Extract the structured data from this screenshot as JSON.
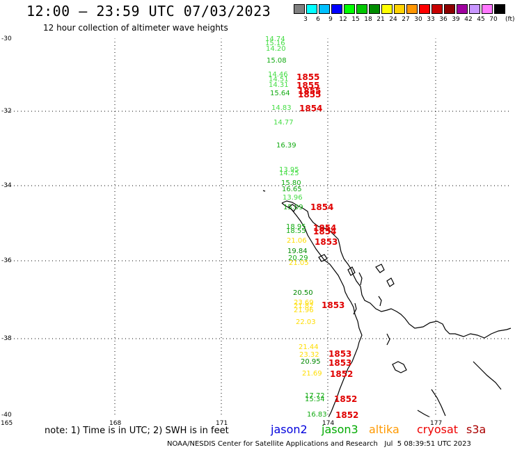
{
  "header": {
    "title": "12:00 – 23:59 UTC 07/03/2023",
    "subtitle": "12 hour collection of altimeter wave heights"
  },
  "legend": {
    "unit": "(ft)",
    "items": [
      {
        "label": "3",
        "color": "#808080"
      },
      {
        "label": "6",
        "color": "#00ffff"
      },
      {
        "label": "9",
        "color": "#00c0ff"
      },
      {
        "label": "12",
        "color": "#0000ff"
      },
      {
        "label": "15",
        "color": "#00ff00"
      },
      {
        "label": "18",
        "color": "#00c800"
      },
      {
        "label": "21",
        "color": "#008c00"
      },
      {
        "label": "24",
        "color": "#ffff00"
      },
      {
        "label": "27",
        "color": "#ffd200"
      },
      {
        "label": "30",
        "color": "#ff9600"
      },
      {
        "label": "33",
        "color": "#ff0000"
      },
      {
        "label": "36",
        "color": "#c80000"
      },
      {
        "label": "39",
        "color": "#8c0000"
      },
      {
        "label": "42",
        "color": "#a000a0"
      },
      {
        "label": "45",
        "color": "#c896ff"
      },
      {
        "label": "70",
        "color": "#ff78ff"
      },
      {
        "label": "",
        "color": "#000000"
      }
    ]
  },
  "axes": {
    "lat_labels": [
      "-30",
      "-32",
      "-34",
      "-36",
      "-38",
      "-40"
    ],
    "lon_labels": [
      "165",
      "168",
      "171",
      "174",
      "177"
    ]
  },
  "measurements": [
    {
      "text": "14.74",
      "color": "#44dd44"
    },
    {
      "text": "15.16",
      "color": "#44dd44"
    },
    {
      "text": "14.20",
      "color": "#44dd44"
    },
    {
      "text": "15.08",
      "color": "#11aa11"
    },
    {
      "text": "14.46",
      "color": "#44dd44"
    },
    {
      "text": "14.51",
      "color": "#44dd44"
    },
    {
      "text": "14.31",
      "color": "#44dd44"
    },
    {
      "text": "15.64",
      "color": "#11aa11"
    },
    {
      "text": "14.83",
      "color": "#44dd44"
    },
    {
      "text": "14.77",
      "color": "#44dd44"
    },
    {
      "text": "16.39",
      "color": "#11aa11"
    },
    {
      "text": "13.95",
      "color": "#44dd44"
    },
    {
      "text": "14.25",
      "color": "#44dd44"
    },
    {
      "text": "15.80",
      "color": "#11aa11"
    },
    {
      "text": "16.65",
      "color": "#11aa11"
    },
    {
      "text": "13.96",
      "color": "#44dd44"
    },
    {
      "text": "15.09",
      "color": "#11aa11"
    },
    {
      "text": "18.95",
      "color": "#11aa11"
    },
    {
      "text": "18.55",
      "color": "#11aa11"
    },
    {
      "text": "21.06",
      "color": "#ffdd00"
    },
    {
      "text": "19.84",
      "color": "#008800"
    },
    {
      "text": "20.29",
      "color": "#11aa11"
    },
    {
      "text": "21.05",
      "color": "#ffdd00"
    },
    {
      "text": "20.50",
      "color": "#008800"
    },
    {
      "text": "23.69",
      "color": "#ffdd00"
    },
    {
      "text": "21.82",
      "color": "#ffdd00"
    },
    {
      "text": "21.96",
      "color": "#ffdd00"
    },
    {
      "text": "22.03",
      "color": "#ffdd00"
    },
    {
      "text": "21.44",
      "color": "#ffdd00"
    },
    {
      "text": "23.32",
      "color": "#ffdd00"
    },
    {
      "text": "20.95",
      "color": "#008800"
    },
    {
      "text": "21.69",
      "color": "#ffdd00"
    },
    {
      "text": "17.72",
      "color": "#11aa11"
    },
    {
      "text": "15.34",
      "color": "#11aa11"
    },
    {
      "text": "16.83",
      "color": "#11aa11"
    }
  ],
  "pass_times": [
    "1855",
    "1855",
    "1855",
    "1855",
    "1854",
    "1854",
    "1854",
    "1854",
    "1853",
    "1853",
    "1853",
    "1853",
    "1852",
    "1852",
    "1852"
  ],
  "note": "note: 1) Time is in UTC; 2) SWH is in feet",
  "satellites": [
    {
      "name": "jason2",
      "color": "#0000dd"
    },
    {
      "name": "jason3",
      "color": "#00aa00"
    },
    {
      "name": "altika",
      "color": "#ff9900"
    },
    {
      "name": "cryosat",
      "color": "#ee0000"
    },
    {
      "name": "s3a",
      "color": "#aa0000"
    }
  ],
  "footer": "NOAA/NESDIS Center for Satellite Applications and Research   Jul  5 08:39:51 UTC 2023"
}
